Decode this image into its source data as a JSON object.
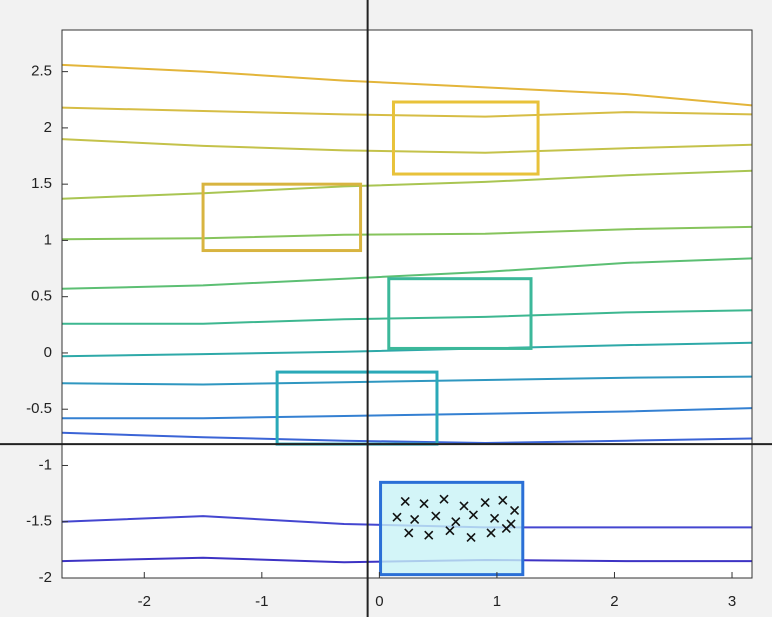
{
  "chart_data": {
    "type": "contour",
    "xlim": [
      -2.7,
      3.17
    ],
    "ylim": [
      -2,
      2.87
    ],
    "xticks": [
      -2,
      -1,
      0,
      1,
      2,
      3
    ],
    "yticks": [
      -2,
      -1.5,
      -1,
      -0.5,
      0,
      0.5,
      1,
      1.5,
      2,
      2.5
    ],
    "crosshair": {
      "x": -0.1,
      "y": -0.81
    },
    "x": [
      -2.7,
      -1.5,
      -0.3,
      0.9,
      2.1,
      3.17
    ],
    "series": [
      {
        "color": "#e3b53a",
        "values": [
          2.56,
          2.5,
          2.42,
          2.36,
          2.3,
          2.2
        ]
      },
      {
        "color": "#d6bd45",
        "values": [
          2.18,
          2.15,
          2.12,
          2.1,
          2.14,
          2.12
        ]
      },
      {
        "color": "#c4c24a",
        "values": [
          1.9,
          1.84,
          1.8,
          1.78,
          1.82,
          1.85
        ]
      },
      {
        "color": "#a9c552",
        "values": [
          1.37,
          1.42,
          1.48,
          1.52,
          1.58,
          1.62
        ]
      },
      {
        "color": "#86c45c",
        "values": [
          1.01,
          1.02,
          1.05,
          1.06,
          1.1,
          1.12
        ]
      },
      {
        "color": "#5cbf73",
        "values": [
          0.57,
          0.6,
          0.66,
          0.72,
          0.8,
          0.84
        ]
      },
      {
        "color": "#3db790",
        "values": [
          0.26,
          0.26,
          0.3,
          0.32,
          0.36,
          0.38
        ]
      },
      {
        "color": "#2ea9a8",
        "values": [
          -0.03,
          -0.01,
          0.01,
          0.04,
          0.07,
          0.09
        ]
      },
      {
        "color": "#2f97c0",
        "values": [
          -0.27,
          -0.28,
          -0.26,
          -0.24,
          -0.22,
          -0.21
        ]
      },
      {
        "color": "#3480d2",
        "values": [
          -0.58,
          -0.58,
          -0.56,
          -0.54,
          -0.52,
          -0.49
        ]
      },
      {
        "color": "#3b64d6",
        "values": [
          -0.71,
          -0.75,
          -0.78,
          -0.8,
          -0.78,
          -0.76
        ]
      },
      {
        "color": "#4446d0",
        "values": [
          -1.5,
          -1.45,
          -1.52,
          -1.55,
          -1.55,
          -1.55
        ]
      },
      {
        "color": "#3d33c4",
        "values": [
          -1.85,
          -1.82,
          -1.86,
          -1.84,
          -1.85,
          -1.85
        ]
      }
    ],
    "rectangles": [
      {
        "color": "#e8c23a",
        "x": [
          0.12,
          1.35
        ],
        "y": [
          1.59,
          2.23
        ]
      },
      {
        "color": "#d8b440",
        "x": [
          -1.5,
          -0.16
        ],
        "y": [
          0.91,
          1.5
        ]
      },
      {
        "color": "#3cb89a",
        "x": [
          0.08,
          1.29
        ],
        "y": [
          0.04,
          0.66
        ]
      },
      {
        "color": "#2aa9b8",
        "x": [
          -0.87,
          0.49
        ],
        "y": [
          -0.81,
          -0.17
        ]
      },
      {
        "color": "#2a6fd6",
        "x": [
          0.01,
          1.22
        ],
        "y": [
          -1.97,
          -1.15
        ]
      }
    ],
    "markers": {
      "x": [
        0.22,
        0.38,
        0.55,
        0.72,
        0.9,
        1.05,
        1.15,
        0.15,
        0.3,
        0.48,
        0.65,
        0.8,
        0.98,
        1.12,
        0.25,
        0.42,
        0.6,
        0.78,
        0.95,
        1.08
      ],
      "y": [
        -1.32,
        -1.34,
        -1.3,
        -1.36,
        -1.33,
        -1.31,
        -1.4,
        -1.46,
        -1.48,
        -1.45,
        -1.5,
        -1.44,
        -1.47,
        -1.52,
        -1.6,
        -1.62,
        -1.58,
        -1.64,
        -1.6,
        -1.56
      ]
    }
  }
}
